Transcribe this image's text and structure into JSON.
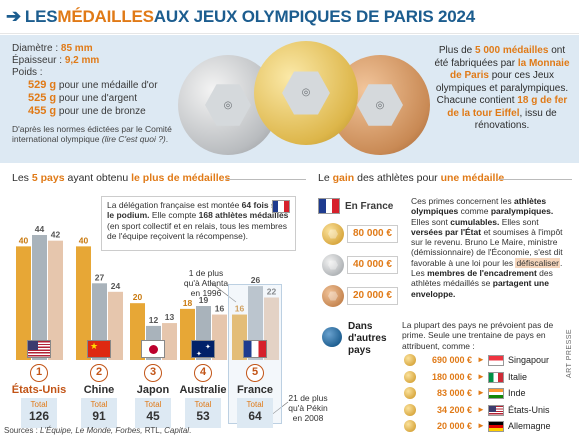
{
  "header": {
    "arrow": "➔",
    "title_p1": "LES ",
    "title_p2": "MÉDAILLES",
    "title_p3": " AUX JEUX OLYMPIQUES DE PARIS 2024"
  },
  "weights": {
    "diameter_label": "Diamètre : ",
    "diameter_value": "85 mm",
    "thickness_label": "Épaisseur : ",
    "thickness_value": "9,2 mm",
    "weight_label": "Poids :",
    "items": [
      {
        "value": "529 g",
        "text": " pour une médaille d'or"
      },
      {
        "value": "525 g",
        "text": " pour une d'argent"
      },
      {
        "value": "455 g",
        "text": " pour une de bronze"
      }
    ],
    "note_p1": "D'après les normes édictées par le Comité international olympique ",
    "note_p2": "(lire C'est quoi ?)",
    "note_p3": "."
  },
  "made": {
    "p1": "Plus de ",
    "p2": "5 000 médailles",
    "p3": " ont été fabriquées par ",
    "p4": "la Monnaie de Paris",
    "p5": " pour ces Jeux olympiques et paralympiques. Chacune contient ",
    "p6": "18 g de fer de la tour Eiffel",
    "p7": ", issu de rénovations."
  },
  "left_title": {
    "p1": "Les ",
    "p2": "5 pays",
    "p3": " ayant obtenu ",
    "p4": "le plus de médailles"
  },
  "right_title": {
    "p1": "Le ",
    "p2": "gain",
    "p3": " des athlètes pour ",
    "p4": "une médaille"
  },
  "fr_note": {
    "p1": "La délégation française est montée ",
    "p2": "64 fois sur le podium.",
    "p3": " Elle compte ",
    "p4": "168 athlètes médaillés",
    "p5": " (en sport collectif et en relais, tous les membres de l'équipe reçoivent la récompense)."
  },
  "atlanta_note": "1 de plus\nqu'à Atlanta\nen 1996",
  "pekin_note": "21 de plus\nqu'à Pékin\nen 2008",
  "total_label": "Total",
  "chart_data": {
    "type": "bar",
    "categories": [
      "États-Unis",
      "Chine",
      "Japon",
      "Australie",
      "France"
    ],
    "series": [
      {
        "name": "or",
        "color": "#e7a736",
        "values": [
          40,
          40,
          20,
          18,
          16
        ]
      },
      {
        "name": "argent",
        "color": "#a9b3bb",
        "values": [
          44,
          27,
          12,
          19,
          26
        ]
      },
      {
        "name": "bronze",
        "color": "#e6c6ad",
        "values": [
          42,
          24,
          13,
          16,
          22
        ]
      }
    ],
    "ranks": [
      "1",
      "2",
      "3",
      "4",
      "5"
    ],
    "totals": [
      "126",
      "91",
      "45",
      "53",
      "64"
    ]
  },
  "right": {
    "fr_label": "En France",
    "prizes": [
      "80 000 €",
      "40 000 €",
      "20 000 €"
    ],
    "explain_p1": "Ces primes concernent les ",
    "explain_p2": "athlètes olympiques",
    "explain_p3": " comme ",
    "explain_p4": "paralympiques.",
    "explain_p5": " Elles sont ",
    "explain_p6": "cumulables.",
    "explain_p7": " Elles sont ",
    "explain_p8": "versées par l'État",
    "explain_p9": " et soumises à l'impôt sur le revenu. Bruno Le Maire, ministre (démissionnaire) de l'Économie, s'est dit favorable à une loi pour les ",
    "explain_p10": "défiscaliser",
    "explain_p11": ". Les ",
    "explain_p12": "membres de l'encadrement",
    "explain_p13": " des athlètes médaillés se ",
    "explain_p14": "partagent une enveloppe.",
    "others_label": "Dans\nd'autres\npays",
    "others_note": "La plupart des pays ne prévoient pas de prime. Seule une trentaine de pays en attribuent, comme :",
    "countries": [
      {
        "amount": "690 000 €",
        "name": "Singapour"
      },
      {
        "amount": "180 000 €",
        "name": "Italie"
      },
      {
        "amount": "83 000 €",
        "name": "Inde"
      },
      {
        "amount": "34 200 €",
        "name": "États-Unis"
      },
      {
        "amount": "20 000 €",
        "name": "Allemagne"
      }
    ]
  },
  "sources": {
    "p1": "Sources : ",
    "p2": "L'Équipe, Le Monde, Forbes,",
    "p3": " RTL, ",
    "p4": "Capital",
    "p5": "."
  },
  "credit": "ART PRESSE"
}
